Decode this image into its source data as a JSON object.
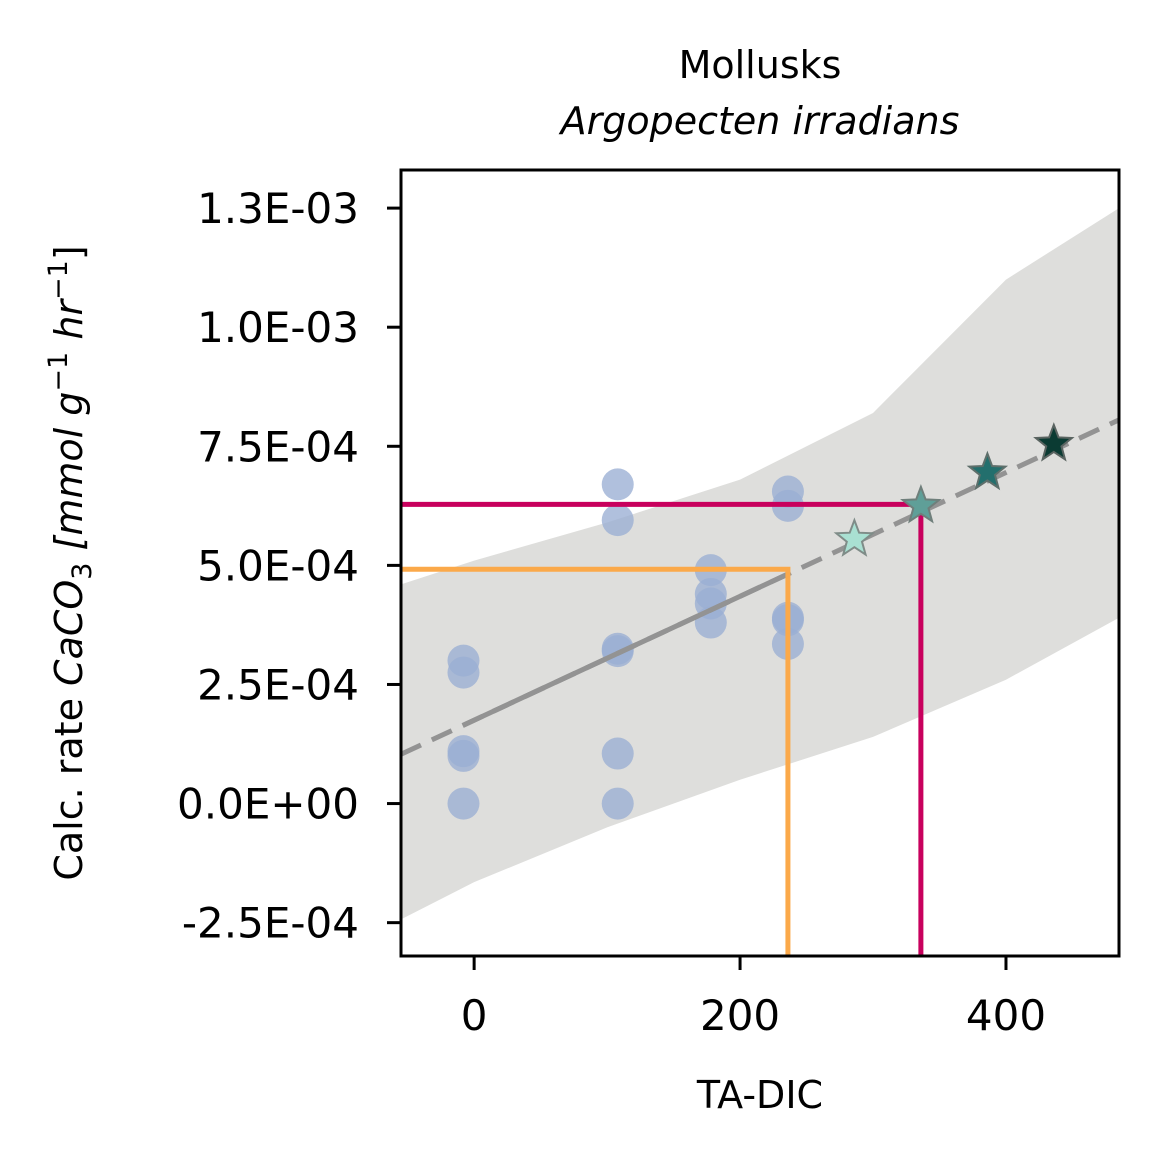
{
  "chart_data": {
    "type": "scatter",
    "title": "Mollusks",
    "subtitle": "Argopecten irradians",
    "xlabel": "TA-DIC",
    "ylabel": {
      "prefix": "Calc. rate ",
      "species": "CaCO",
      "species_sub": "3",
      "unit_open": " [mmol g",
      "unit_exp1": "−1",
      "unit_mid": " hr",
      "unit_exp2": "−1",
      "unit_close": "]"
    },
    "xlim": [
      -55,
      485
    ],
    "ylim": [
      -0.00032,
      0.00133
    ],
    "xticks": [
      {
        "value": 0,
        "label": "0"
      },
      {
        "value": 200,
        "label": "200"
      },
      {
        "value": 400,
        "label": "400"
      }
    ],
    "yticks": [
      {
        "value": -0.00025,
        "label": "-2.5E-04"
      },
      {
        "value": 0.0,
        "label": "0.0E+00"
      },
      {
        "value": 0.00025,
        "label": "2.5E-04"
      },
      {
        "value": 0.0005,
        "label": "5.0E-04"
      },
      {
        "value": 0.00075,
        "label": "7.5E-04"
      },
      {
        "value": 0.001,
        "label": "1.0E-03"
      },
      {
        "value": 0.00125,
        "label": "1.3E-03"
      }
    ],
    "observations": {
      "color": "#9aaed4",
      "points": [
        {
          "x": -8,
          "y": 0.0003
        },
        {
          "x": -8,
          "y": 0.000275
        },
        {
          "x": -8,
          "y": 0.00011
        },
        {
          "x": -8,
          "y": 0.0001
        },
        {
          "x": -8,
          "y": 0.0
        },
        {
          "x": 108,
          "y": 0.00067
        },
        {
          "x": 108,
          "y": 0.000595
        },
        {
          "x": 108,
          "y": 0.000325
        },
        {
          "x": 108,
          "y": 0.00032
        },
        {
          "x": 108,
          "y": 0.000105
        },
        {
          "x": 108,
          "y": 0.0
        },
        {
          "x": 178,
          "y": 0.00049
        },
        {
          "x": 178,
          "y": 0.00044
        },
        {
          "x": 178,
          "y": 0.00042
        },
        {
          "x": 178,
          "y": 0.00038
        },
        {
          "x": 236,
          "y": 0.000655
        },
        {
          "x": 236,
          "y": 0.000625
        },
        {
          "x": 236,
          "y": 0.00039
        },
        {
          "x": 236,
          "y": 0.000385
        },
        {
          "x": 236,
          "y": 0.000335
        }
      ]
    },
    "fit": {
      "intercept": 0.000175,
      "slope": 1.3e-06,
      "x_observed_range": [
        -8,
        236
      ],
      "color": "#939393"
    },
    "confidence_band": {
      "color": "#dededc",
      "upper": [
        {
          "x": -55,
          "y": 0.00046
        },
        {
          "x": 0,
          "y": 0.00051
        },
        {
          "x": 100,
          "y": 0.00059
        },
        {
          "x": 200,
          "y": 0.00068
        },
        {
          "x": 300,
          "y": 0.00082
        },
        {
          "x": 400,
          "y": 0.0011
        },
        {
          "x": 485,
          "y": 0.00125
        }
      ],
      "lower": [
        {
          "x": -55,
          "y": -0.000243
        },
        {
          "x": 0,
          "y": -0.000165
        },
        {
          "x": 100,
          "y": -5e-05
        },
        {
          "x": 200,
          "y": 5e-05
        },
        {
          "x": 300,
          "y": 0.00014
        },
        {
          "x": 400,
          "y": 0.00026
        },
        {
          "x": 485,
          "y": 0.00039
        }
      ]
    },
    "projections": [
      {
        "x": 286,
        "y": 0.000555,
        "fill": "#a9e0d2",
        "stroke": "#7f8c88"
      },
      {
        "x": 336,
        "y": 0.000625,
        "fill": "#5f9f98",
        "stroke": "#6f7f7b"
      },
      {
        "x": 386,
        "y": 0.000695,
        "fill": "#236f6d",
        "stroke": "#5e6f6b"
      },
      {
        "x": 436,
        "y": 0.000755,
        "fill": "#0b3b33",
        "stroke": "#5a6461"
      }
    ],
    "reference_lines": [
      {
        "x": 236,
        "y": 0.000492,
        "color": "#fba94a"
      },
      {
        "x": 336,
        "y": 0.000628,
        "color": "#c8005d"
      }
    ]
  }
}
